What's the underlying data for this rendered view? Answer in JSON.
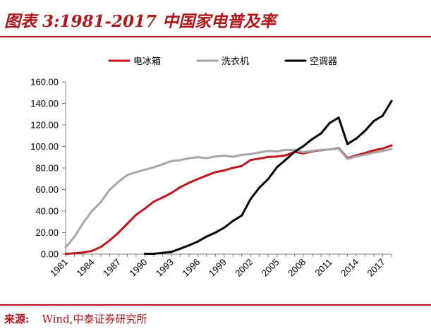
{
  "title": "图表 3:1981-2017 中国家电普及率",
  "source_label": "来源:",
  "source_text": "Wind,中泰证券研究所",
  "colors": {
    "accent": "#b0161a",
    "fridge": "#c0161e",
    "washer": "#a6a6a6",
    "ac": "#000000",
    "axis": "#808080"
  },
  "chart_data": {
    "type": "line",
    "title": "",
    "xlabel": "",
    "ylabel": "",
    "ylim": [
      0,
      160
    ],
    "xlim": [
      1981,
      2018
    ],
    "y_ticks": [
      "0.00",
      "20.00",
      "40.00",
      "60.00",
      "80.00",
      "100.00",
      "120.00",
      "140.00",
      "160.00"
    ],
    "x_ticks": [
      "1981",
      "1984",
      "1987",
      "1990",
      "1993",
      "1996",
      "1999",
      "2002",
      "2005",
      "2008",
      "2011",
      "2014",
      "2017"
    ],
    "legend_position": "top",
    "grid": false,
    "series": [
      {
        "name": "电冰箱",
        "color": "#c0161e",
        "points": [
          [
            1981,
            0.2
          ],
          [
            1982,
            0.8
          ],
          [
            1983,
            1.5
          ],
          [
            1984,
            3
          ],
          [
            1985,
            6.6
          ],
          [
            1986,
            12.7
          ],
          [
            1987,
            19.9
          ],
          [
            1988,
            28.1
          ],
          [
            1989,
            36.5
          ],
          [
            1990,
            42.3
          ],
          [
            1991,
            48.7
          ],
          [
            1992,
            52.6
          ],
          [
            1993,
            56.7
          ],
          [
            1994,
            62.1
          ],
          [
            1995,
            66.2
          ],
          [
            1996,
            69.7
          ],
          [
            1997,
            73
          ],
          [
            1998,
            76.1
          ],
          [
            1999,
            77.7
          ],
          [
            2000,
            80.1
          ],
          [
            2001,
            81.9
          ],
          [
            2002,
            87.4
          ],
          [
            2003,
            88.7
          ],
          [
            2004,
            90.2
          ],
          [
            2005,
            90.7
          ],
          [
            2006,
            91.8
          ],
          [
            2007,
            95
          ],
          [
            2008,
            93.6
          ],
          [
            2009,
            95.4
          ],
          [
            2010,
            96.6
          ],
          [
            2011,
            97.2
          ],
          [
            2012,
            98.5
          ],
          [
            2013,
            89.2
          ],
          [
            2014,
            91.7
          ],
          [
            2015,
            94
          ],
          [
            2016,
            96.4
          ],
          [
            2017,
            98
          ],
          [
            2018,
            100.9
          ]
        ]
      },
      {
        "name": "洗衣机",
        "color": "#a6a6a6",
        "points": [
          [
            1981,
            6.3
          ],
          [
            1982,
            16.1
          ],
          [
            1983,
            29.1
          ],
          [
            1984,
            40.1
          ],
          [
            1985,
            48.3
          ],
          [
            1986,
            59.7
          ],
          [
            1987,
            67.2
          ],
          [
            1988,
            73.4
          ],
          [
            1989,
            76.2
          ],
          [
            1990,
            78.4
          ],
          [
            1991,
            80.6
          ],
          [
            1992,
            83.4
          ],
          [
            1993,
            86.4
          ],
          [
            1994,
            87.3
          ],
          [
            1995,
            89
          ],
          [
            1996,
            90.1
          ],
          [
            1997,
            89.1
          ],
          [
            1998,
            90.6
          ],
          [
            1999,
            91.4
          ],
          [
            2000,
            90.5
          ],
          [
            2001,
            92.2
          ],
          [
            2002,
            92.9
          ],
          [
            2003,
            94.4
          ],
          [
            2004,
            95.9
          ],
          [
            2005,
            95.5
          ],
          [
            2006,
            96.8
          ],
          [
            2007,
            96.8
          ],
          [
            2008,
            94.7
          ],
          [
            2009,
            96
          ],
          [
            2010,
            96.9
          ],
          [
            2011,
            97.1
          ],
          [
            2012,
            98
          ],
          [
            2013,
            88.4
          ],
          [
            2014,
            90.7
          ],
          [
            2015,
            92.3
          ],
          [
            2016,
            94.2
          ],
          [
            2017,
            95.7
          ],
          [
            2018,
            97.7
          ]
        ]
      },
      {
        "name": "空调器",
        "color": "#000000",
        "points": [
          [
            1990,
            0.3
          ],
          [
            1991,
            0.3
          ],
          [
            1992,
            1.2
          ],
          [
            1993,
            2
          ],
          [
            1994,
            5
          ],
          [
            1995,
            8.1
          ],
          [
            1996,
            11.6
          ],
          [
            1997,
            16.3
          ],
          [
            1998,
            20
          ],
          [
            1999,
            24.5
          ],
          [
            2000,
            30.8
          ],
          [
            2001,
            35.8
          ],
          [
            2002,
            51.1
          ],
          [
            2003,
            61.8
          ],
          [
            2004,
            69.8
          ],
          [
            2005,
            80.7
          ],
          [
            2006,
            87.8
          ],
          [
            2007,
            95.1
          ],
          [
            2008,
            100.3
          ],
          [
            2009,
            106.8
          ],
          [
            2010,
            112.1
          ],
          [
            2011,
            122
          ],
          [
            2012,
            126.8
          ],
          [
            2013,
            102.2
          ],
          [
            2014,
            107.4
          ],
          [
            2015,
            114.6
          ],
          [
            2016,
            123.7
          ],
          [
            2017,
            128.6
          ],
          [
            2018,
            142.2
          ]
        ]
      }
    ]
  }
}
